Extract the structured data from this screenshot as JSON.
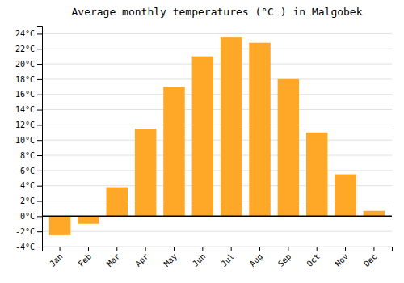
{
  "chart_data": {
    "type": "bar",
    "title": "Average monthly temperatures (°C ) in Malgobek",
    "categories": [
      "Jan",
      "Feb",
      "Mar",
      "Apr",
      "May",
      "Jun",
      "Jul",
      "Aug",
      "Sep",
      "Oct",
      "Nov",
      "Dec"
    ],
    "values": [
      -2.5,
      -1.0,
      3.8,
      11.5,
      17.0,
      21.0,
      23.5,
      22.8,
      18.0,
      11.0,
      5.5,
      0.7
    ],
    "color": "#FFA726",
    "ylim": [
      -4,
      25
    ],
    "yticks": [
      {
        "value": -4,
        "label": "-4°C"
      },
      {
        "value": -2,
        "label": "-2°C"
      },
      {
        "value": 0,
        "label": "0°C"
      },
      {
        "value": 2,
        "label": "2°C"
      },
      {
        "value": 4,
        "label": "4°C"
      },
      {
        "value": 6,
        "label": "6°C"
      },
      {
        "value": 8,
        "label": "8°C"
      },
      {
        "value": 10,
        "label": "10°C"
      },
      {
        "value": 12,
        "label": "12°C"
      },
      {
        "value": 14,
        "label": "14°C"
      },
      {
        "value": 16,
        "label": "16°C"
      },
      {
        "value": 18,
        "label": "18°C"
      },
      {
        "value": 20,
        "label": "20°C"
      },
      {
        "value": 22,
        "label": "22°C"
      },
      {
        "value": 24,
        "label": "24°C"
      }
    ],
    "grid": true
  }
}
